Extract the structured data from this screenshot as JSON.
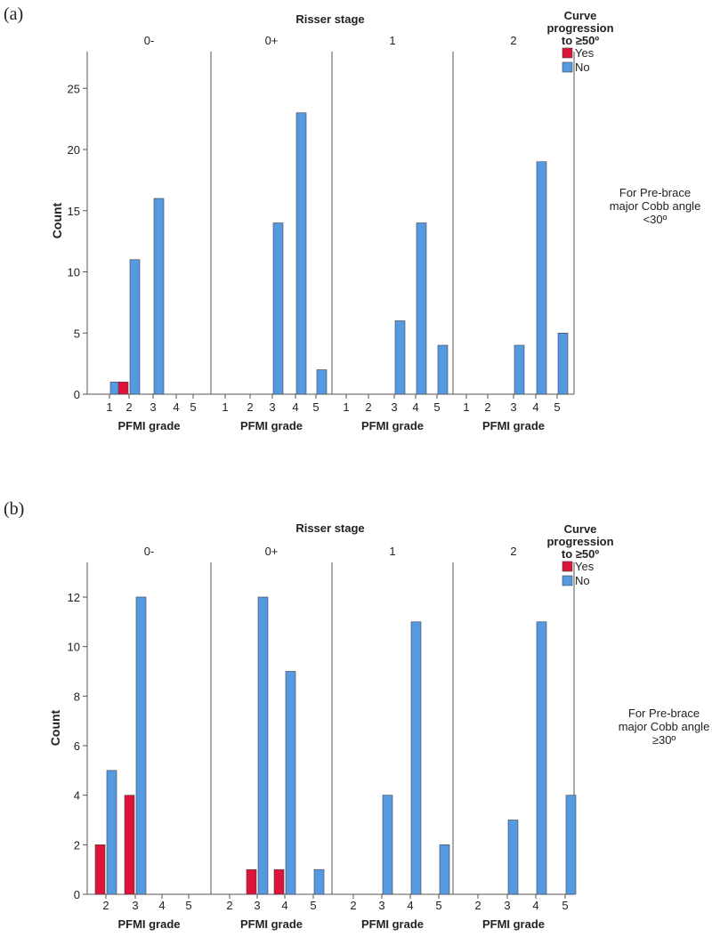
{
  "colors": {
    "yes": "#dc143c",
    "no": "#5599e0",
    "axis": "#555555",
    "text": "#222222"
  },
  "chart_data": [
    {
      "type": "bar",
      "panel_label": "(a)",
      "title": "Risser stage",
      "facets": [
        "0-",
        "0+",
        "1",
        "2"
      ],
      "xlabel": "PFMI grade",
      "ylabel": "Count",
      "ylim": [
        0,
        28
      ],
      "yticks": [
        0,
        5,
        10,
        15,
        20,
        25
      ],
      "categories_per_facet": [
        [
          "1",
          "2",
          "3",
          "4",
          "5"
        ],
        [
          "1",
          "2",
          "3",
          "4",
          "5"
        ],
        [
          "1",
          "2",
          "3",
          "4",
          "5"
        ],
        [
          "1",
          "2",
          "3",
          "4",
          "5"
        ]
      ],
      "legend": {
        "title_lines": [
          "Curve",
          "progression",
          "to ≥50º"
        ],
        "entries": [
          "Yes",
          "No"
        ],
        "position": "top-right"
      },
      "annotation": [
        "For Pre-brace",
        "major Cobb angle",
        "<30º"
      ],
      "series": [
        {
          "name": "Yes",
          "values": [
            [
              0,
              1,
              0,
              0,
              0
            ],
            [
              0,
              0,
              0,
              0,
              0
            ],
            [
              0,
              0,
              0,
              0,
              0
            ],
            [
              0,
              0,
              0,
              0,
              0
            ]
          ]
        },
        {
          "name": "No",
          "values": [
            [
              1,
              11,
              16,
              0,
              0
            ],
            [
              0,
              0,
              14,
              23,
              2
            ],
            [
              0,
              0,
              6,
              14,
              4
            ],
            [
              0,
              0,
              4,
              19,
              5
            ]
          ]
        }
      ]
    },
    {
      "type": "bar",
      "panel_label": "(b)",
      "title": "Risser stage",
      "facets": [
        "0-",
        "0+",
        "1",
        "2"
      ],
      "xlabel": "PFMI grade",
      "ylabel": "Count",
      "ylim": [
        0,
        13.4
      ],
      "yticks": [
        0,
        2,
        4,
        6,
        8,
        10,
        12
      ],
      "categories_per_facet": [
        [
          "2",
          "3",
          "4",
          "5"
        ],
        [
          "2",
          "3",
          "4",
          "5"
        ],
        [
          "2",
          "3",
          "4",
          "5"
        ],
        [
          "2",
          "3",
          "4",
          "5"
        ]
      ],
      "legend": {
        "title_lines": [
          "Curve",
          "progression",
          "to ≥50º"
        ],
        "entries": [
          "Yes",
          "No"
        ],
        "position": "top-right"
      },
      "annotation": [
        "For Pre-brace",
        "major Cobb angle",
        "≥30º"
      ],
      "series": [
        {
          "name": "Yes",
          "values": [
            [
              2,
              4,
              0,
              0
            ],
            [
              0,
              1,
              1,
              0
            ],
            [
              0,
              0,
              0,
              0
            ],
            [
              0,
              0,
              0,
              0
            ]
          ]
        },
        {
          "name": "No",
          "values": [
            [
              5,
              12,
              0,
              0
            ],
            [
              0,
              12,
              9,
              1
            ],
            [
              0,
              4,
              11,
              2
            ],
            [
              0,
              3,
              11,
              4
            ]
          ]
        }
      ]
    }
  ]
}
